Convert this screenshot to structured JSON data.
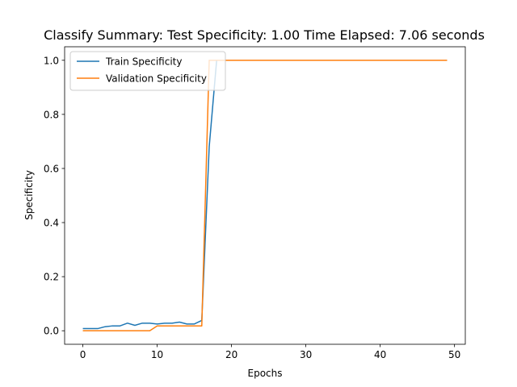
{
  "chart_data": {
    "type": "line",
    "title": "Classify Summary: Test Specificity: 1.00 Time Elapsed: 7.06 seconds",
    "xlabel": "Epochs",
    "ylabel": "Specificity",
    "xlim": [
      -2.45,
      51.45
    ],
    "ylim": [
      -0.05,
      1.05
    ],
    "xticks": [
      0,
      10,
      20,
      30,
      40,
      50
    ],
    "yticks": [
      0.0,
      0.2,
      0.4,
      0.6,
      0.8,
      1.0
    ],
    "xtick_labels": [
      "0",
      "10",
      "20",
      "30",
      "40",
      "50"
    ],
    "ytick_labels": [
      "0.0",
      "0.2",
      "0.4",
      "0.6",
      "0.8",
      "1.0"
    ],
    "legend_position": "upper-left",
    "grid": false,
    "x": [
      0,
      1,
      2,
      3,
      4,
      5,
      6,
      7,
      8,
      9,
      10,
      11,
      12,
      13,
      14,
      15,
      16,
      17,
      18,
      19,
      20,
      21,
      22,
      23,
      24,
      25,
      26,
      27,
      28,
      29,
      30,
      31,
      32,
      33,
      34,
      35,
      36,
      37,
      38,
      39,
      40,
      41,
      42,
      43,
      44,
      45,
      46,
      47,
      48,
      49
    ],
    "series": [
      {
        "name": "Train Specificity",
        "color": "#1f77b4",
        "values": [
          0.008,
          0.008,
          0.008,
          0.015,
          0.018,
          0.018,
          0.028,
          0.02,
          0.028,
          0.028,
          0.025,
          0.028,
          0.028,
          0.032,
          0.025,
          0.025,
          0.038,
          0.68,
          1.0,
          1.0,
          1.0,
          1.0,
          1.0,
          1.0,
          1.0,
          1.0,
          1.0,
          1.0,
          1.0,
          1.0,
          1.0,
          1.0,
          1.0,
          1.0,
          1.0,
          1.0,
          1.0,
          1.0,
          1.0,
          1.0,
          1.0,
          1.0,
          1.0,
          1.0,
          1.0,
          1.0,
          1.0,
          1.0,
          1.0,
          1.0
        ]
      },
      {
        "name": "Validation Specificity",
        "color": "#ff7f0e",
        "values": [
          0.0,
          0.0,
          0.0,
          0.0,
          0.0,
          0.0,
          0.0,
          0.0,
          0.0,
          0.0,
          0.018,
          0.018,
          0.018,
          0.018,
          0.018,
          0.018,
          0.018,
          1.0,
          1.0,
          1.0,
          1.0,
          1.0,
          1.0,
          1.0,
          1.0,
          1.0,
          1.0,
          1.0,
          1.0,
          1.0,
          1.0,
          1.0,
          1.0,
          1.0,
          1.0,
          1.0,
          1.0,
          1.0,
          1.0,
          1.0,
          1.0,
          1.0,
          1.0,
          1.0,
          1.0,
          1.0,
          1.0,
          1.0,
          1.0,
          1.0
        ]
      }
    ]
  }
}
